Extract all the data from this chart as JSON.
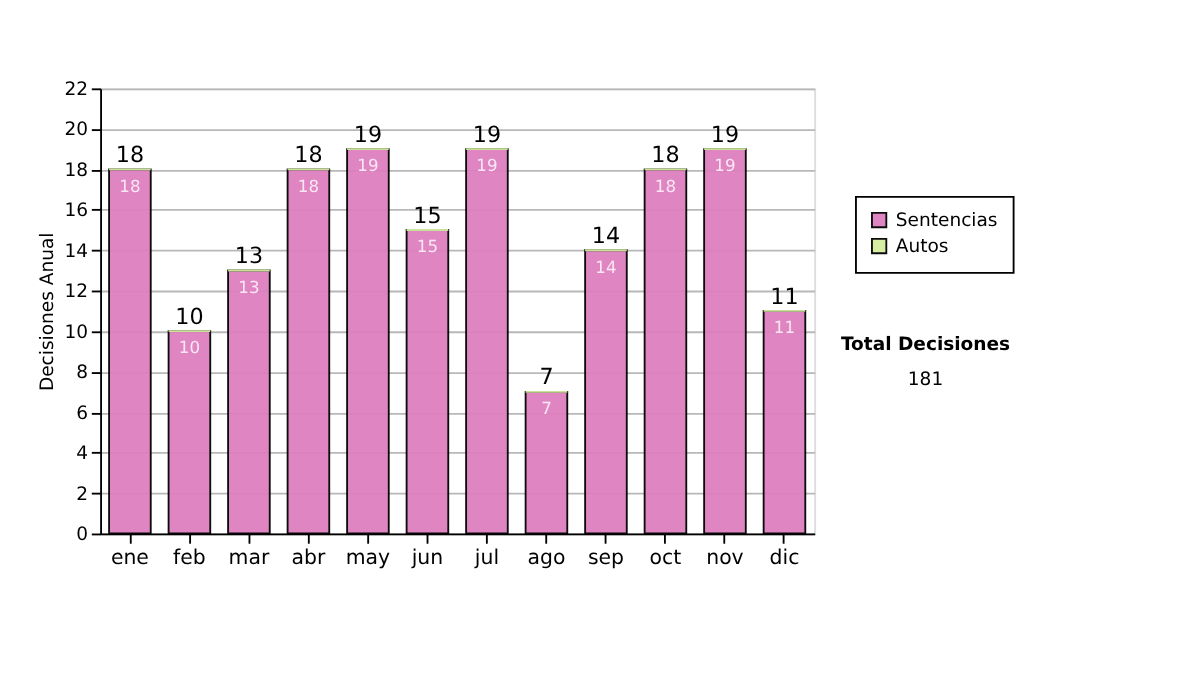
{
  "chart_data": {
    "type": "bar",
    "ylabel": "Decisiones Anual",
    "stacked": true,
    "categories": [
      "ene",
      "feb",
      "mar",
      "abr",
      "may",
      "jun",
      "jul",
      "ago",
      "sep",
      "oct",
      "nov",
      "dic"
    ],
    "series": [
      {
        "name": "Sentencias",
        "color": "#dd7fbf",
        "values": [
          18,
          10,
          13,
          18,
          19,
          15,
          19,
          7,
          14,
          18,
          19,
          11
        ],
        "value_labels": [
          "18",
          "10",
          "13",
          "18",
          "19",
          "15",
          "19",
          "7",
          "14",
          "18",
          "19",
          "11"
        ]
      },
      {
        "name": "Autos",
        "color": "#d4eea0",
        "values": [
          0,
          0,
          0,
          0,
          0,
          0,
          0,
          0,
          0,
          0,
          0,
          0
        ]
      }
    ],
    "totals": [
      "18",
      "10",
      "13",
      "18",
      "19",
      "15",
      "19",
      "7",
      "14",
      "18",
      "19",
      "11"
    ],
    "ylim": [
      0,
      22
    ],
    "yticks": [
      0,
      2,
      4,
      6,
      8,
      10,
      12,
      14,
      16,
      18,
      20,
      22
    ],
    "grid": "y",
    "legend": "right",
    "annotations": [
      "Total Decisiones",
      "181"
    ]
  }
}
